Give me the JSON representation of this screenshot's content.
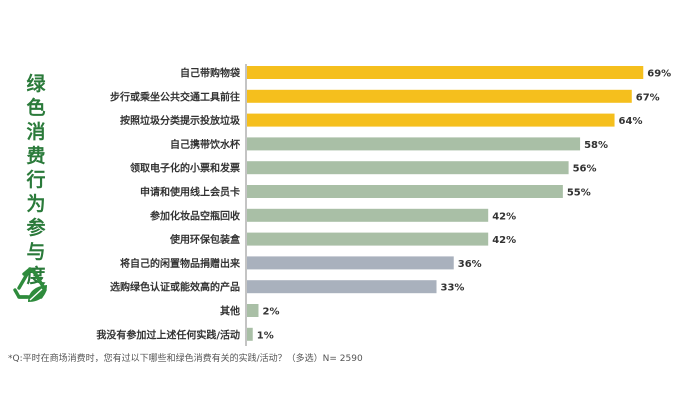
{
  "side_title": "绿色消费行为参与度",
  "footnote": "*Q:平时在商场消费时，您有过以下哪些和绿色消费有关的实践/活动？（多选）N= 2590",
  "colors": {
    "highlight": "#f5bf1d",
    "green_gray": "#a9bfa6",
    "blue_gray": "#a9b1bd",
    "title_green": "#2a7a3a",
    "icon_green": "#2e8b3c"
  },
  "icon": "recycle-leaf-icon",
  "chart_data": {
    "type": "bar",
    "orientation": "horizontal",
    "categories": [
      "自己带购物袋",
      "步行或乘坐公共交通工具前往",
      "按照垃圾分类提示投放垃圾",
      "自己携带饮水杯",
      "领取电子化的小票和发票",
      "申请和使用线上会员卡",
      "参加化妆品空瓶回收",
      "使用环保包装盒",
      "将自己的闲置物品捐赠出来",
      "选购绿色认证或能效高的产品",
      "其他",
      "我没有参加过上述任何实践/活动"
    ],
    "values": [
      69,
      67,
      64,
      58,
      56,
      55,
      42,
      42,
      36,
      33,
      2,
      1
    ],
    "value_labels": [
      "69%",
      "67%",
      "64%",
      "58%",
      "56%",
      "55%",
      "42%",
      "42%",
      "36%",
      "33%",
      "2%",
      "1%"
    ],
    "bar_color_groups": [
      "highlight",
      "highlight",
      "highlight",
      "green_gray",
      "green_gray",
      "green_gray",
      "green_gray",
      "green_gray",
      "blue_gray",
      "blue_gray",
      "green_gray",
      "green_gray"
    ],
    "xlim": [
      0,
      70
    ],
    "unit": "%"
  }
}
